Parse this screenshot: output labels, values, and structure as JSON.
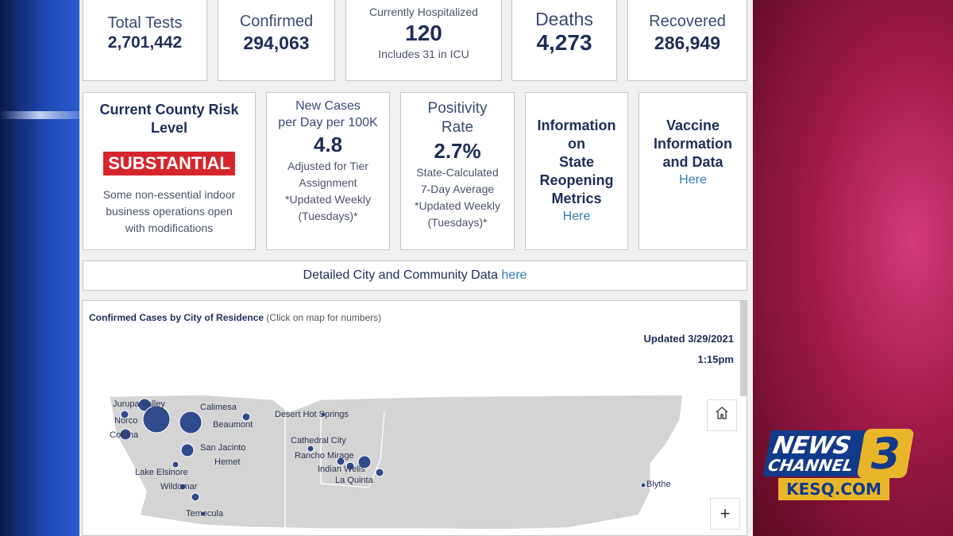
{
  "stats": {
    "total_tests": {
      "label": "Total Tests",
      "value": "2,701,442"
    },
    "confirmed": {
      "label": "Confirmed",
      "value": "294,063"
    },
    "hospitalized": {
      "label": "Currently Hospitalized",
      "value": "120",
      "note": "Includes 31 in ICU"
    },
    "deaths": {
      "label": "Deaths",
      "value": "4,273"
    },
    "recovered": {
      "label": "Recovered",
      "value": "286,949"
    }
  },
  "risk": {
    "title_line1": "Current County Risk",
    "title_line2": "Level",
    "badge": "SUBSTANTIAL",
    "badge_color": "#d6262b",
    "desc_line1": "Some non-essential indoor",
    "desc_line2": "business operations open",
    "desc_line3": "with modifications"
  },
  "new_cases": {
    "label_line1": "New Cases",
    "label_line2": "per Day per 100K",
    "value": "4.8",
    "line1": "Adjusted for Tier",
    "line2": "Assignment",
    "line3": "*Updated Weekly",
    "line4": "(Tuesdays)*"
  },
  "positivity": {
    "label_line1": "Positivity",
    "label_line2": "Rate",
    "value": "2.7%",
    "line1": "State-Calculated",
    "line2": "7-Day Average",
    "line3": "*Updated Weekly",
    "line4": "(Tuesdays)*"
  },
  "reopening": {
    "line1": "Information",
    "line2": "on",
    "line3": "State",
    "line4": "Reopening",
    "line5": "Metrics",
    "link": "Here"
  },
  "vaccine": {
    "line1": "Vaccine",
    "line2": "Information",
    "line3": "and Data",
    "link": "Here"
  },
  "detailed": {
    "text": "Detailed City and Community Data",
    "link": "here"
  },
  "map": {
    "title": "Confirmed Cases by City of Residence",
    "hint": "(Click on map for numbers)",
    "updated_date": "Updated 3/29/2021",
    "updated_time": "1:15pm",
    "home_icon": "home-icon",
    "zoom_in": "+",
    "fill_color": "#d4d4d4",
    "dot_color": "#2f4b8c",
    "cities": [
      "Jurupa Valley",
      "Norco",
      "Corona",
      "Calimesa",
      "Beaumont",
      "San Jacinto",
      "Hemet",
      "Lake Elsinore",
      "Wildomar",
      "Temecula",
      "Desert Hot Springs",
      "Cathedral City",
      "Rancho Mirage",
      "Indian Wells",
      "La Quinta",
      "Blythe"
    ]
  },
  "logo": {
    "news": "NEWS",
    "channel": "CHANNEL",
    "number": "3",
    "site": "KESQ.COM"
  }
}
